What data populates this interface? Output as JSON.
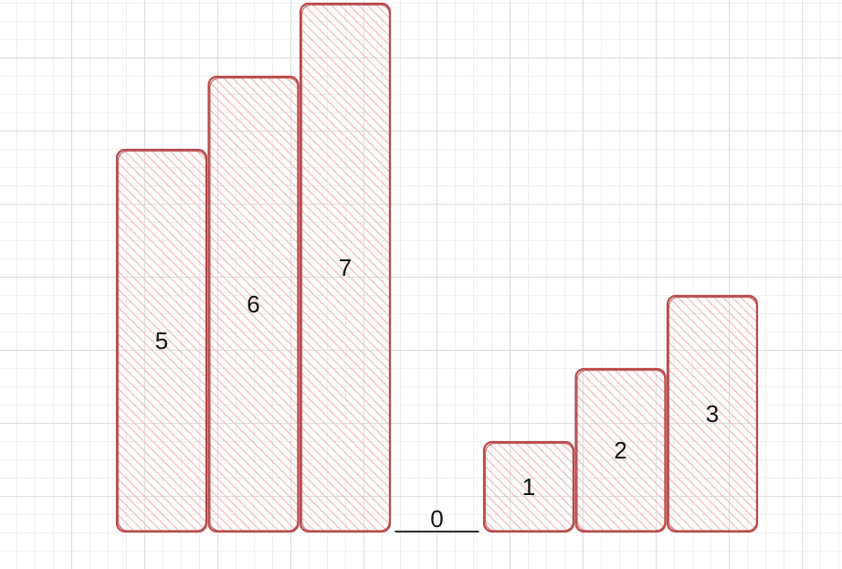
{
  "diagram": {
    "bars": [
      {
        "value": 5,
        "label": "5"
      },
      {
        "value": 6,
        "label": "6"
      },
      {
        "value": 7,
        "label": "7"
      },
      {
        "value": 0,
        "label": "0"
      },
      {
        "value": 1,
        "label": "1"
      },
      {
        "value": 2,
        "label": "2"
      },
      {
        "value": 3,
        "label": "3"
      }
    ],
    "colors": {
      "stroke": "#b84a4a",
      "hatch": "#f2b8b8",
      "baseline": "#111111"
    }
  }
}
